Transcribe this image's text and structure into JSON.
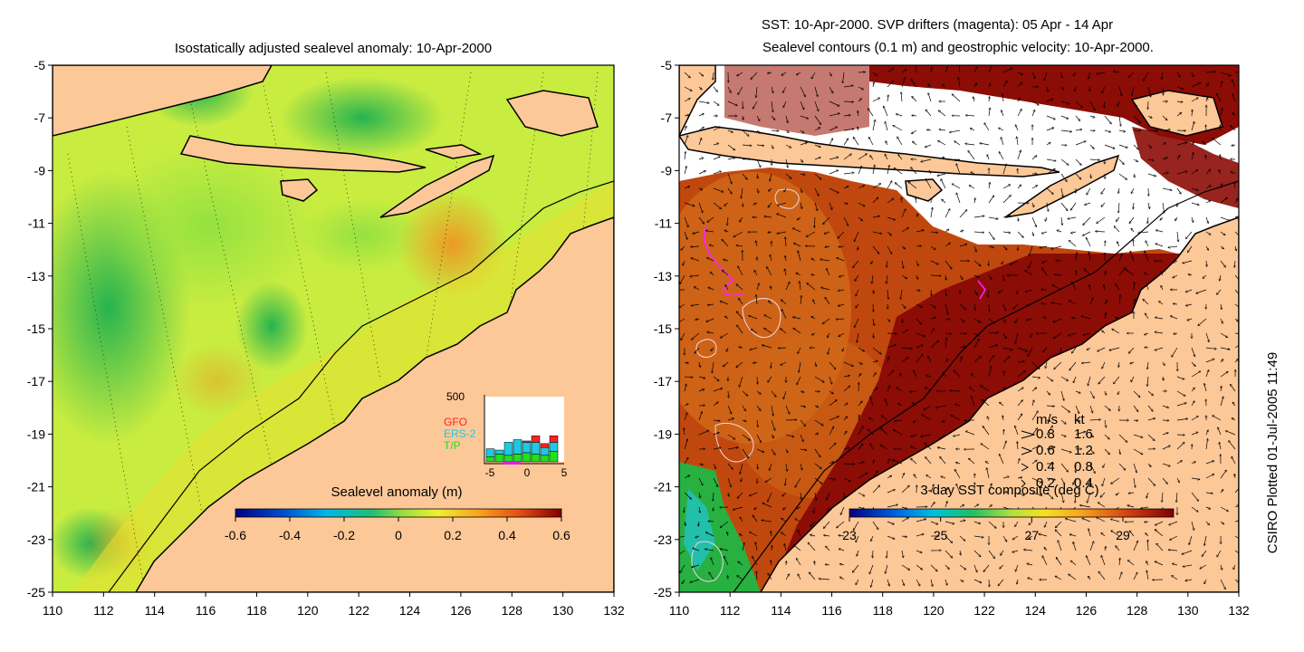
{
  "left_map": {
    "title": "Isostatically adjusted sealevel anomaly: 10-Apr-2000",
    "x_ticks": [
      "110",
      "112",
      "114",
      "116",
      "118",
      "120",
      "122",
      "124",
      "126",
      "128",
      "130",
      "132"
    ],
    "y_ticks": [
      "-5",
      "-7",
      "-9",
      "-11",
      "-13",
      "-15",
      "-17",
      "-19",
      "-21",
      "-23",
      "-25"
    ],
    "colorbar": {
      "label": "Sealevel anomaly (m)",
      "ticks": [
        "-0.6",
        "-0.4",
        "-0.2",
        "0",
        "0.2",
        "0.4",
        "0.6"
      ]
    },
    "inset": {
      "ymax_label": "500",
      "legend": [
        {
          "name": "GFO",
          "color": "#ff2020"
        },
        {
          "name": "ERS-2",
          "color": "#20c8e0"
        },
        {
          "name": "T/P",
          "color": "#20e020"
        }
      ],
      "x_ticks": [
        "-5",
        "0",
        "5"
      ],
      "bars": [
        {
          "tp": 40,
          "ers": 60,
          "gfo": 0
        },
        {
          "tp": 60,
          "ers": 30,
          "gfo": 0
        },
        {
          "tp": 50,
          "ers": 100,
          "gfo": 0
        },
        {
          "tp": 60,
          "ers": 110,
          "gfo": 0
        },
        {
          "tp": 70,
          "ers": 80,
          "gfo": 10
        },
        {
          "tp": 60,
          "ers": 90,
          "gfo": 50
        },
        {
          "tp": 50,
          "ers": 60,
          "gfo": 30
        },
        {
          "tp": 80,
          "ers": 70,
          "gfo": 50
        }
      ]
    }
  },
  "right_map": {
    "title_line1": "SST: 10-Apr-2000. SVP drifters (magenta): 05 Apr - 14 Apr",
    "title_line2": "Sealevel contours (0.1 m) and geostrophic velocity: 10-Apr-2000.",
    "x_ticks": [
      "110",
      "112",
      "114",
      "116",
      "118",
      "120",
      "122",
      "124",
      "126",
      "128",
      "130",
      "132"
    ],
    "y_ticks": [
      "-5",
      "-7",
      "-9",
      "-11",
      "-13",
      "-15",
      "-17",
      "-19",
      "-21",
      "-23",
      "-25"
    ],
    "colorbar": {
      "label": "3-day SST composite (deg C)",
      "ticks": [
        "23",
        "25",
        "27",
        "29"
      ]
    },
    "velocity_legend": {
      "header_ms": "m/s",
      "header_kt": "kt",
      "rows": [
        {
          "ms": "0.8",
          "kt": "1.6"
        },
        {
          "ms": "0.6",
          "kt": "1.2"
        },
        {
          "ms": "0.4",
          "kt": "0.8"
        },
        {
          "ms": "0.2",
          "kt": "0.4"
        }
      ]
    }
  },
  "side_label": "CSIRO Plotted 01-Jul-2005 11:49",
  "colors": {
    "land": "#fdc898",
    "sst_dark": "#8c0c06",
    "sst_mid": "#c0480e",
    "sla_base": "#c8ec40",
    "sla_green": "#48d030"
  }
}
